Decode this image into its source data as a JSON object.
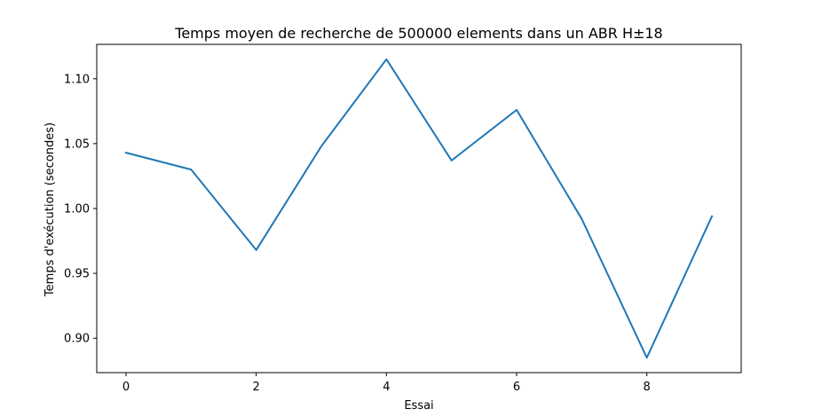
{
  "chart_data": {
    "type": "line",
    "title": "Temps moyen de recherche de 500000 elements dans un ABR H±18",
    "xlabel": "Essai",
    "ylabel": "Temps d'exécution (secondes)",
    "x": [
      0,
      1,
      2,
      3,
      4,
      5,
      6,
      7,
      8,
      9
    ],
    "series": [
      {
        "values": [
          1.043,
          1.03,
          0.968,
          1.048,
          1.115,
          1.037,
          1.076,
          0.992,
          0.885,
          0.994
        ],
        "color": "#1f77b4"
      }
    ],
    "xlim": [
      -0.45,
      9.45
    ],
    "ylim": [
      0.8735,
      1.1265
    ],
    "xticks": [
      0,
      2,
      4,
      6,
      8
    ],
    "xtick_labels": [
      "0",
      "2",
      "4",
      "6",
      "8"
    ],
    "yticks": [
      0.9,
      0.95,
      1.0,
      1.05,
      1.1
    ],
    "ytick_labels": [
      "0.90",
      "0.95",
      "1.00",
      "1.05",
      "1.10"
    ],
    "grid": false,
    "legend": "none"
  }
}
